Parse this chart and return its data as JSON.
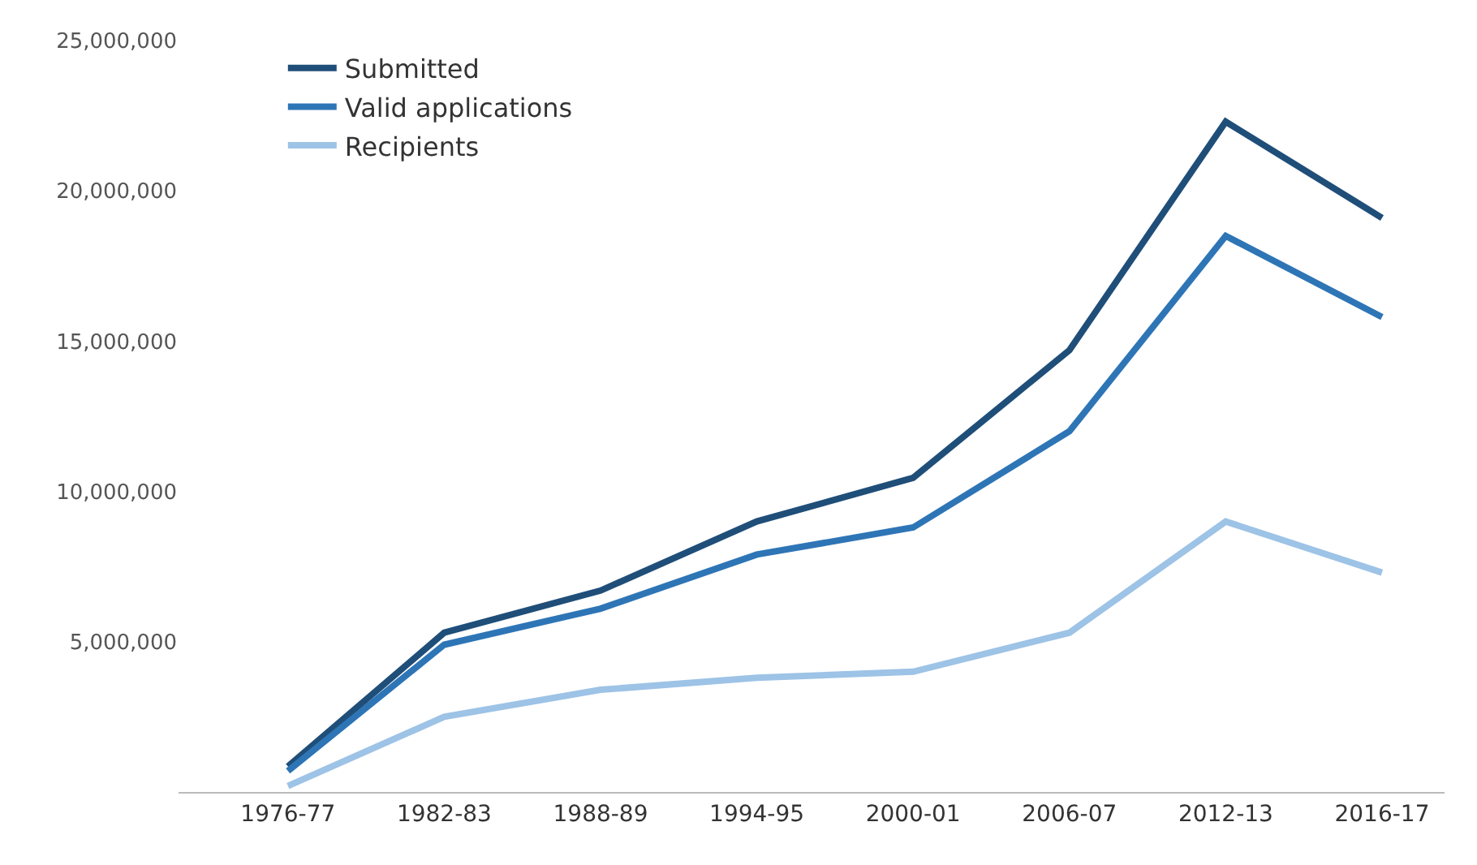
{
  "chart_data": {
    "type": "line",
    "categories": [
      "1976-77",
      "1982-83",
      "1988-89",
      "1994-95",
      "2000-01",
      "2006-07",
      "2012-13",
      "2016-17"
    ],
    "series": [
      {
        "name": "Submitted",
        "color": "#1f4e79",
        "values": [
          850000,
          5300000,
          6700000,
          9000000,
          10450000,
          14700000,
          22300000,
          19100000
        ]
      },
      {
        "name": "Valid applications",
        "color": "#2e75b6",
        "values": [
          700000,
          4900000,
          6100000,
          7900000,
          8800000,
          12000000,
          18500000,
          15800000
        ]
      },
      {
        "name": "Recipients",
        "color": "#9dc3e6",
        "values": [
          200000,
          2500000,
          3400000,
          3800000,
          4000000,
          5300000,
          9000000,
          7300000
        ]
      }
    ],
    "ylim": [
      0,
      25000000
    ],
    "yticks": [
      {
        "value": 5000000,
        "label": "5,000,000"
      },
      {
        "value": 10000000,
        "label": "10,000,000"
      },
      {
        "value": 15000000,
        "label": "15,000,000"
      },
      {
        "value": 20000000,
        "label": "20,000,000"
      },
      {
        "value": 25000000,
        "label": "25,000,000"
      }
    ],
    "legend": "top left",
    "marker": "none",
    "line_style": "solid"
  }
}
